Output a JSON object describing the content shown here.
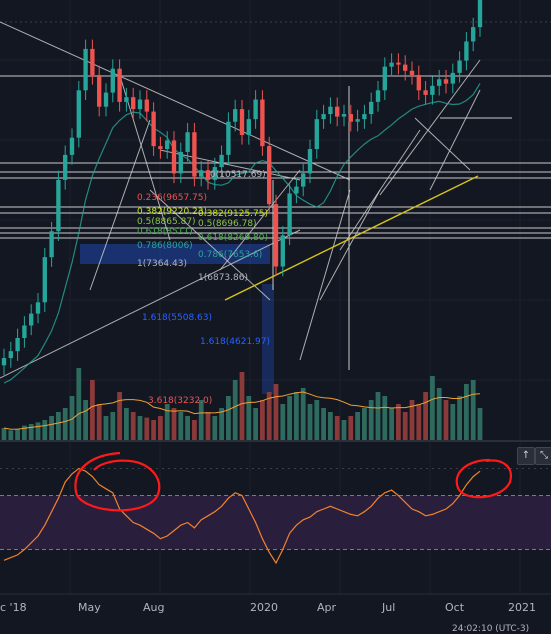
{
  "chart_data": [
    {
      "type": "candlestick",
      "name": "",
      "title": "",
      "xlabel": "",
      "ylabel": "",
      "x_ticks": [
        "c '18",
        "May",
        "Aug",
        "2020",
        "Apr",
        "Jul",
        "Oct",
        "2021"
      ],
      "y_range_data_units": [
        3100,
        14000
      ],
      "y_scale": "log",
      "grid": true,
      "price_path": [
        3400,
        3500,
        3700,
        3900,
        4100,
        4300,
        5200,
        5800,
        7200,
        8000,
        8600,
        10500,
        12500,
        11200,
        9800,
        10400,
        11500,
        10000,
        10200,
        9700,
        10100,
        9600,
        8300,
        8200,
        8500,
        7400,
        8100,
        8800,
        7300,
        7500,
        7200,
        7600,
        8000,
        9200,
        9700,
        8700,
        9300,
        10100,
        8300,
        6500,
        5000,
        5700,
        6800,
        7000,
        7400,
        8200,
        9300,
        9500,
        9800,
        9400,
        9500,
        9200,
        9300,
        9500,
        10000,
        10500,
        11600,
        11800,
        11700,
        11400,
        11200,
        10500,
        10300,
        10700,
        11000,
        10800,
        11300,
        11900,
        12900,
        13700,
        15500
      ],
      "fib_retracement_upper": [
        {
          "level": "0",
          "value": "10517.69"
        },
        {
          "level": "0.236",
          "value": "9657.75"
        },
        {
          "level": "0.382",
          "value": "9220.23"
        },
        {
          "level": "0.5",
          "value": "8865.87"
        },
        {
          "level": "0.618",
          "value": "8511"
        },
        {
          "level": "0.786",
          "value": "8006"
        },
        {
          "level": "1",
          "value": "7364.43"
        },
        {
          "level": "1.618",
          "value": "5508.63"
        }
      ],
      "fib_retracement_lower": [
        {
          "level": "0.382",
          "value": "9125.75"
        },
        {
          "level": "0.5",
          "value": "8696.78"
        },
        {
          "level": "0.618",
          "value": "8269.80"
        },
        {
          "level": "0.786",
          "value": "7653.6"
        },
        {
          "level": "1",
          "value": "6873.86"
        },
        {
          "level": "1.618",
          "value": "4621.97"
        }
      ],
      "extra_fib_label": {
        "level": "3.618",
        "value": "3232.0"
      }
    },
    {
      "type": "bar",
      "name": "Volume",
      "volume_relative": [
        0.15,
        0.12,
        0.14,
        0.18,
        0.2,
        0.22,
        0.25,
        0.3,
        0.35,
        0.4,
        0.55,
        0.9,
        0.5,
        0.75,
        0.45,
        0.3,
        0.35,
        0.6,
        0.4,
        0.35,
        0.3,
        0.28,
        0.25,
        0.3,
        0.45,
        0.4,
        0.35,
        0.3,
        0.25,
        0.5,
        0.35,
        0.3,
        0.4,
        0.55,
        0.75,
        0.85,
        0.55,
        0.4,
        0.5,
        0.6,
        0.7,
        0.45,
        0.55,
        0.6,
        0.65,
        0.45,
        0.5,
        0.4,
        0.35,
        0.3,
        0.25,
        0.3,
        0.35,
        0.4,
        0.5,
        0.6,
        0.55,
        0.4,
        0.45,
        0.35,
        0.5,
        0.45,
        0.6,
        0.8,
        0.65,
        0.5,
        0.45,
        0.55,
        0.7,
        0.75,
        0.4
      ]
    },
    {
      "type": "line",
      "name": "Oscillator",
      "y_range": [
        0,
        100
      ],
      "upper_band": 70,
      "lower_band": 30,
      "values": [
        22,
        24,
        26,
        30,
        35,
        40,
        48,
        58,
        68,
        80,
        86,
        90,
        88,
        84,
        78,
        75,
        72,
        60,
        55,
        50,
        48,
        45,
        42,
        38,
        40,
        44,
        48,
        50,
        46,
        52,
        55,
        58,
        62,
        68,
        72,
        70,
        60,
        50,
        38,
        28,
        20,
        30,
        42,
        48,
        52,
        54,
        58,
        60,
        62,
        60,
        58,
        56,
        55,
        58,
        62,
        68,
        72,
        74,
        70,
        65,
        60,
        58,
        55,
        56,
        58,
        60,
        64,
        70,
        78,
        84,
        88
      ]
    }
  ],
  "ui": {
    "scroll_up_icon": "arrow-up-icon",
    "scroll_up_glyph": "↑",
    "collapse_icon": "collapse-icon",
    "collapse_glyph": "⤡",
    "time_readout": "24:02:10 (UTC-3)"
  },
  "colors": {
    "background": "#131722",
    "up_candle": "#26a69a",
    "down_candle": "#ef5350",
    "trendline": "#c9c9c9",
    "fib_zone": "#2962ff",
    "yellow_line": "#d4c21a",
    "ma_line": "#26a69a",
    "volume_up": "#2e6b5e",
    "volume_down": "#8b3a3a",
    "volume_ma": "#f0a030",
    "osc_line": "#f0822e",
    "osc_fill": "#2a1e3d",
    "highlight_red": "#ff1a1a"
  }
}
